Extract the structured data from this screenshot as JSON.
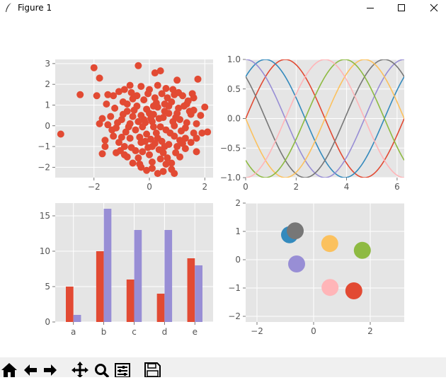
{
  "window": {
    "title": "Figure 1"
  },
  "toolbar": {
    "buttons": [
      "home-icon",
      "back-arrow-icon",
      "forward-arrow-icon",
      "pan-icon",
      "zoom-icon",
      "configure-subplots-icon",
      "save-icon"
    ]
  },
  "colors": {
    "axes_bg": "#e5e5e5",
    "grid": "#ffffff",
    "tick_text": "#555555",
    "cycle": [
      "#E24A33",
      "#348ABD",
      "#988ED5",
      "#777777",
      "#FBC15E",
      "#8EBA42",
      "#FFB5B8"
    ]
  },
  "chart_data": [
    {
      "type": "scatter",
      "xlim": [
        -3.4,
        2.3
      ],
      "ylim": [
        -2.5,
        3.2
      ],
      "xticks": [
        "-2",
        "0",
        "2"
      ],
      "yticks": [
        "-2",
        "-1",
        "0",
        "1",
        "2",
        "3"
      ],
      "grid": true,
      "series": [
        {
          "color": "#E24A33",
          "points": [
            [
              -3.2,
              -0.4
            ],
            [
              -2.5,
              1.5
            ],
            [
              -2.0,
              2.8
            ],
            [
              -1.8,
              2.3
            ],
            [
              0.4,
              2.65
            ],
            [
              -0.4,
              2.9
            ],
            [
              0.2,
              2.55
            ],
            [
              1.75,
              2.25
            ],
            [
              1.0,
              2.2
            ],
            [
              -1.9,
              1.45
            ],
            [
              -1.5,
              1.5
            ],
            [
              -1.1,
              1.65
            ],
            [
              -0.9,
              1.75
            ],
            [
              -0.6,
              1.3
            ],
            [
              -0.3,
              1.9
            ],
            [
              0.0,
              1.75
            ],
            [
              0.3,
              1.95
            ],
            [
              0.6,
              1.8
            ],
            [
              0.9,
              1.5
            ],
            [
              1.2,
              1.45
            ],
            [
              1.4,
              1.2
            ],
            [
              1.6,
              1.35
            ],
            [
              -1.7,
              0.35
            ],
            [
              -1.5,
              0.05
            ],
            [
              -1.2,
              -0.1
            ],
            [
              -1.0,
              0.3
            ],
            [
              -0.8,
              0.7
            ],
            [
              -0.7,
              0.1
            ],
            [
              -0.5,
              -0.2
            ],
            [
              -0.3,
              0.5
            ],
            [
              -0.1,
              0.8
            ],
            [
              0.1,
              0.2
            ],
            [
              0.3,
              0.9
            ],
            [
              0.5,
              0.4
            ],
            [
              0.7,
              0.6
            ],
            [
              0.9,
              0.0
            ],
            [
              1.1,
              0.3
            ],
            [
              1.3,
              -0.1
            ],
            [
              1.5,
              0.55
            ],
            [
              1.7,
              0.1
            ],
            [
              2.0,
              0.9
            ],
            [
              2.1,
              -0.3
            ],
            [
              1.9,
              -0.35
            ],
            [
              -1.6,
              -0.7
            ],
            [
              -1.3,
              -0.5
            ],
            [
              -1.1,
              -0.8
            ],
            [
              -0.9,
              -1.0
            ],
            [
              -0.7,
              -0.6
            ],
            [
              -0.5,
              -1.2
            ],
            [
              -0.3,
              -0.8
            ],
            [
              -0.1,
              -0.4
            ],
            [
              0.1,
              -1.0
            ],
            [
              0.3,
              -0.6
            ],
            [
              0.5,
              -1.3
            ],
            [
              0.7,
              -0.9
            ],
            [
              0.9,
              -0.5
            ],
            [
              1.1,
              -0.7
            ],
            [
              1.3,
              -1.1
            ],
            [
              1.5,
              -0.8
            ],
            [
              1.7,
              -1.25
            ],
            [
              -1.7,
              -1.35
            ],
            [
              -1.2,
              -1.3
            ],
            [
              -0.8,
              -1.5
            ],
            [
              -0.4,
              -1.55
            ],
            [
              0.0,
              -1.4
            ],
            [
              0.4,
              -1.6
            ],
            [
              0.8,
              -1.8
            ],
            [
              1.1,
              -1.5
            ],
            [
              -0.3,
              -2.0
            ],
            [
              0.1,
              -2.05
            ],
            [
              0.5,
              -2.2
            ],
            [
              0.8,
              -2.1
            ],
            [
              -0.1,
              -2.15
            ],
            [
              0.3,
              -2.3
            ],
            [
              -0.6,
              -1.8
            ],
            [
              0.9,
              -2.3
            ],
            [
              1.3,
              -0.6
            ],
            [
              1.6,
              -0.35
            ],
            [
              -1.4,
              0.45
            ],
            [
              -0.2,
              1.25
            ],
            [
              0.2,
              1.35
            ],
            [
              0.55,
              1.05
            ],
            [
              0.8,
              1.15
            ],
            [
              1.05,
              0.85
            ],
            [
              1.25,
              0.95
            ],
            [
              -0.45,
              0.95
            ],
            [
              -0.95,
              1.15
            ],
            [
              -0.65,
              1.6
            ],
            [
              0.45,
              1.55
            ],
            [
              0.15,
              -0.05
            ],
            [
              -0.15,
              0.15
            ],
            [
              0.6,
              -0.2
            ],
            [
              -0.85,
              -0.3
            ],
            [
              0.95,
              0.4
            ],
            [
              -0.25,
              -0.05
            ],
            [
              0.35,
              0.35
            ],
            [
              0.0,
              0.6
            ],
            [
              -0.6,
              0.45
            ],
            [
              0.7,
              0.95
            ],
            [
              1.45,
              0.7
            ],
            [
              -1.25,
              0.85
            ],
            [
              -1.8,
              0.1
            ],
            [
              1.15,
              -0.25
            ],
            [
              0.25,
              -0.35
            ],
            [
              -0.35,
              -0.55
            ],
            [
              -1.05,
              -1.2
            ],
            [
              0.65,
              -1.55
            ],
            [
              1.0,
              -1.0
            ],
            [
              -0.05,
              -1.05
            ],
            [
              0.45,
              -0.75
            ],
            [
              1.35,
              0.15
            ],
            [
              -0.75,
              -0.05
            ],
            [
              -0.2,
              0.3
            ],
            [
              0.15,
              0.55
            ],
            [
              0.85,
              0.2
            ],
            [
              -1.35,
              -0.2
            ],
            [
              -0.55,
              0.75
            ],
            [
              0.25,
              1.1
            ],
            [
              0.55,
              0.7
            ],
            [
              1.6,
              0.75
            ],
            [
              1.85,
              0.5
            ],
            [
              -1.55,
              1.05
            ],
            [
              -0.95,
              0.55
            ],
            [
              -0.15,
              -0.75
            ],
            [
              0.05,
              -0.65
            ],
            [
              0.75,
              -0.35
            ],
            [
              1.2,
              -0.85
            ],
            [
              -0.65,
              -1.05
            ],
            [
              -0.25,
              -1.25
            ],
            [
              0.35,
              -1.15
            ],
            [
              0.95,
              -1.3
            ],
            [
              -1.0,
              -0.55
            ],
            [
              0.15,
              0.95
            ],
            [
              -0.45,
              1.45
            ],
            [
              1.05,
              1.6
            ],
            [
              0.65,
              1.35
            ],
            [
              -0.05,
              1.55
            ],
            [
              -0.8,
              1.05
            ],
            [
              1.35,
              1.05
            ],
            [
              1.55,
              1.55
            ],
            [
              -1.15,
              0.15
            ],
            [
              0.4,
              -0.05
            ],
            [
              -0.4,
              0.2
            ],
            [
              1.0,
              0.6
            ],
            [
              0.2,
              -0.85
            ],
            [
              -0.9,
              -1.4
            ],
            [
              0.55,
              -1.0
            ],
            [
              0.1,
              -1.75
            ],
            [
              -0.35,
              -1.85
            ],
            [
              0.6,
              -1.85
            ],
            [
              -1.6,
              -1.0
            ],
            [
              1.7,
              -0.6
            ],
            [
              -1.3,
              1.45
            ],
            [
              0.85,
              1.75
            ],
            [
              -0.7,
              1.95
            ],
            [
              0.05,
              0.35
            ]
          ]
        }
      ]
    },
    {
      "type": "line",
      "xlim": [
        0,
        6.283
      ],
      "ylim": [
        -1.0,
        1.0
      ],
      "xticks": [
        "0",
        "2",
        "4",
        "6"
      ],
      "yticks": [
        "-1.0",
        "-0.5",
        "0.0",
        "0.5",
        "1.0"
      ],
      "grid": true,
      "series": [
        {
          "color": "#E24A33",
          "values": "sin(x + 0)"
        },
        {
          "color": "#348ABD",
          "values": "sin(x + pi/4)"
        },
        {
          "color": "#988ED5",
          "values": "sin(x + pi/2)"
        },
        {
          "color": "#777777",
          "values": "sin(x + 3pi/4)"
        },
        {
          "color": "#FBC15E",
          "values": "sin(x + pi)"
        },
        {
          "color": "#8EBA42",
          "values": "sin(x + 5pi/4)"
        },
        {
          "color": "#FFB5B8",
          "values": "sin(x + 3pi/2)"
        }
      ]
    },
    {
      "type": "bar",
      "categories": [
        "a",
        "b",
        "c",
        "d",
        "e"
      ],
      "ylim": [
        0,
        16.8
      ],
      "yticks": [
        "0",
        "5",
        "10",
        "15"
      ],
      "grid": true,
      "series": [
        {
          "color": "#E24A33",
          "values": [
            5,
            10,
            6,
            4,
            9
          ]
        },
        {
          "color": "#988ED5",
          "values": [
            1,
            16,
            13,
            13,
            8
          ]
        }
      ]
    },
    {
      "type": "scatter",
      "xlim": [
        -2.4,
        3.2
      ],
      "ylim": [
        -2.2,
        2.0
      ],
      "xticks": [
        "-2",
        "0",
        "2"
      ],
      "yticks": [
        "-2",
        "-1",
        "0",
        "1",
        "2"
      ],
      "grid": true,
      "series": [
        {
          "color": "#E24A33",
          "points": [
            [
              1.42,
              -1.1
            ]
          ]
        },
        {
          "color": "#348ABD",
          "points": [
            [
              -0.85,
              0.88
            ]
          ]
        },
        {
          "color": "#988ED5",
          "points": [
            [
              -0.6,
              -0.15
            ]
          ]
        },
        {
          "color": "#777777",
          "points": [
            [
              -0.65,
              1.02
            ]
          ]
        },
        {
          "color": "#FBC15E",
          "points": [
            [
              0.57,
              0.57
            ]
          ]
        },
        {
          "color": "#8EBA42",
          "points": [
            [
              1.72,
              0.33
            ]
          ]
        },
        {
          "color": "#FFB5B8",
          "points": [
            [
              0.58,
              -0.98
            ]
          ]
        }
      ]
    }
  ]
}
